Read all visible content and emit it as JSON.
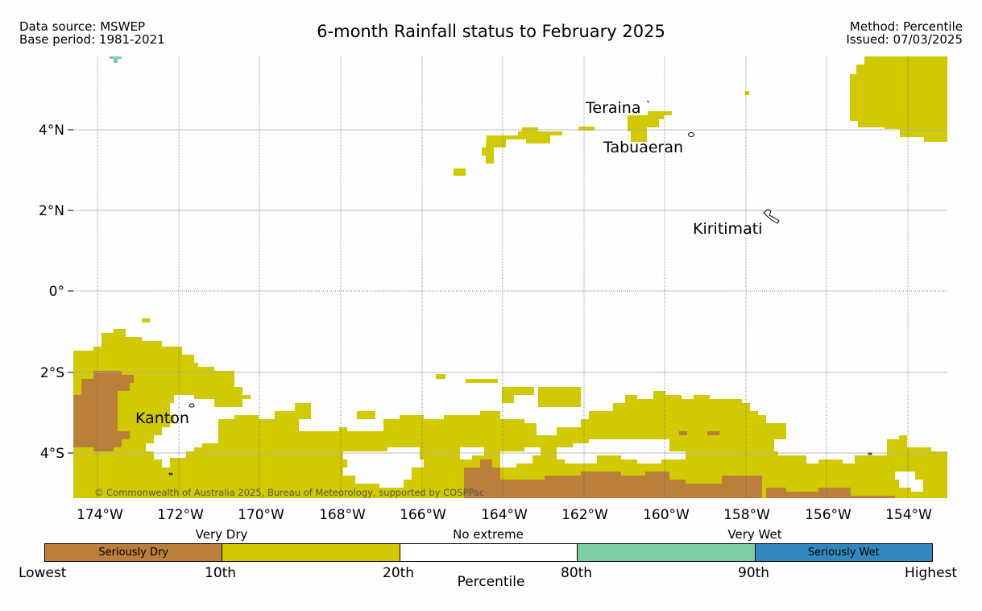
{
  "header": {
    "data_source": "Data source: MSWEP",
    "base_period": "Base period: 1981-2021",
    "title": "6-month Rainfall status to February 2025",
    "method": "Method: Percentile",
    "issued": "Issued: 07/03/2025"
  },
  "map": {
    "lat_labels": [
      "4°N",
      "2°N",
      "0°",
      "2°S",
      "4°S"
    ],
    "lon_labels": [
      "174°W",
      "172°W",
      "170°W",
      "168°W",
      "166°W",
      "164°W",
      "162°W",
      "160°W",
      "158°W",
      "156°W",
      "154°W"
    ],
    "places": [
      "Teraina",
      "Tabuaeran",
      "Kiritimati",
      "Kanton"
    ],
    "copyright": "© Commonwealth of Australia 2025, Bureau of Meteorology, supported by COSPPac"
  },
  "legend": {
    "categories": [
      "Very Dry",
      "No extreme",
      "Very Wet"
    ],
    "segments": [
      {
        "label": "Seriously Dry",
        "color": "#b97f3b"
      },
      {
        "label": "",
        "color": "#d2ca00"
      },
      {
        "label": "",
        "color": "#ffffff"
      },
      {
        "label": "",
        "color": "#7fcca5"
      },
      {
        "label": "Seriously Wet",
        "color": "#3288bc"
      }
    ],
    "ticks": [
      "Lowest",
      "10th",
      "20th",
      "80th",
      "90th",
      "Highest"
    ],
    "axis_title": "Percentile"
  },
  "colors": {
    "very_dry": "#d2ca00",
    "seriously_dry": "#b97f3b",
    "very_wet": "#7fcca5",
    "seriously_wet": "#3288bc"
  }
}
